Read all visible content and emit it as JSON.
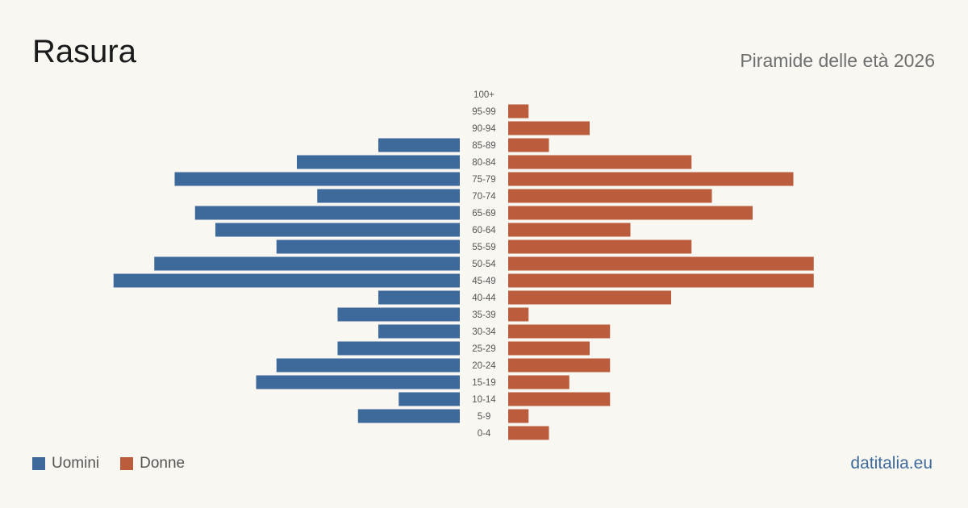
{
  "header": {
    "title": "Rasura",
    "subtitle": "Piramide delle età 2026"
  },
  "legend": {
    "male_label": "Uomini",
    "female_label": "Donne"
  },
  "footer": {
    "site": "datitalia.eu"
  },
  "colors": {
    "male": "#3d6a9b",
    "female": "#bb5c3c",
    "background": "#f9f7f2",
    "tick_text": "#555555"
  },
  "chart_data": {
    "type": "bar",
    "orientation": "horizontal-pyramid",
    "categories": [
      "100+",
      "95-99",
      "90-94",
      "85-89",
      "80-84",
      "75-79",
      "70-74",
      "65-69",
      "60-64",
      "55-59",
      "50-54",
      "45-49",
      "40-44",
      "35-39",
      "30-34",
      "25-29",
      "20-24",
      "15-19",
      "10-14",
      "5-9",
      "0-4"
    ],
    "series": [
      {
        "name": "Uomini",
        "values": [
          0,
          0,
          0,
          4,
          8,
          14,
          7,
          13,
          12,
          9,
          15,
          17,
          4,
          6,
          4,
          6,
          9,
          10,
          3,
          5,
          0
        ]
      },
      {
        "name": "Donne",
        "values": [
          0,
          1,
          4,
          2,
          9,
          14,
          10,
          12,
          6,
          9,
          15,
          15,
          8,
          1,
          5,
          4,
          5,
          3,
          5,
          1,
          2
        ]
      }
    ],
    "legend_position": "bottom-left",
    "grid": false
  }
}
